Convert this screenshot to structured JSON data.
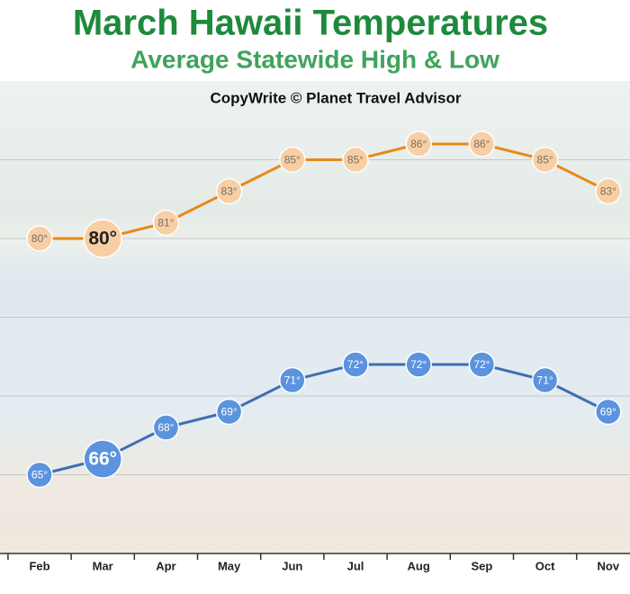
{
  "chart_data": {
    "type": "line",
    "title": "March Hawaii Temperatures",
    "subtitle": "Average Statewide High & Low",
    "annotation": "CopyWrite © Planet Travel Advisor",
    "categories": [
      "Feb",
      "Mar",
      "Apr",
      "May",
      "Jun",
      "Jul",
      "Aug",
      "Sep",
      "Oct",
      "Nov"
    ],
    "highlight_index": 1,
    "ylim": [
      60,
      90
    ],
    "yticks": [
      65,
      70,
      75,
      80,
      85
    ],
    "grid": true,
    "series": [
      {
        "name": "High",
        "color": "#e8891a",
        "marker_color": "#f8cfa5",
        "values": [
          80,
          80,
          81,
          83,
          85,
          85,
          86,
          86,
          85,
          83
        ],
        "value_labels": [
          "80°",
          "80°",
          "81°",
          "83°",
          "85°",
          "85°",
          "86°",
          "86°",
          "85°",
          "83°"
        ]
      },
      {
        "name": "Low",
        "color": "#3d6fb6",
        "marker_color": "#5b93de",
        "values": [
          65,
          66,
          68,
          69,
          71,
          72,
          72,
          72,
          71,
          69
        ],
        "value_labels": [
          "65°",
          "66°",
          "68°",
          "69°",
          "71°",
          "72°",
          "72°",
          "72°",
          "71°",
          "69°"
        ]
      }
    ]
  }
}
